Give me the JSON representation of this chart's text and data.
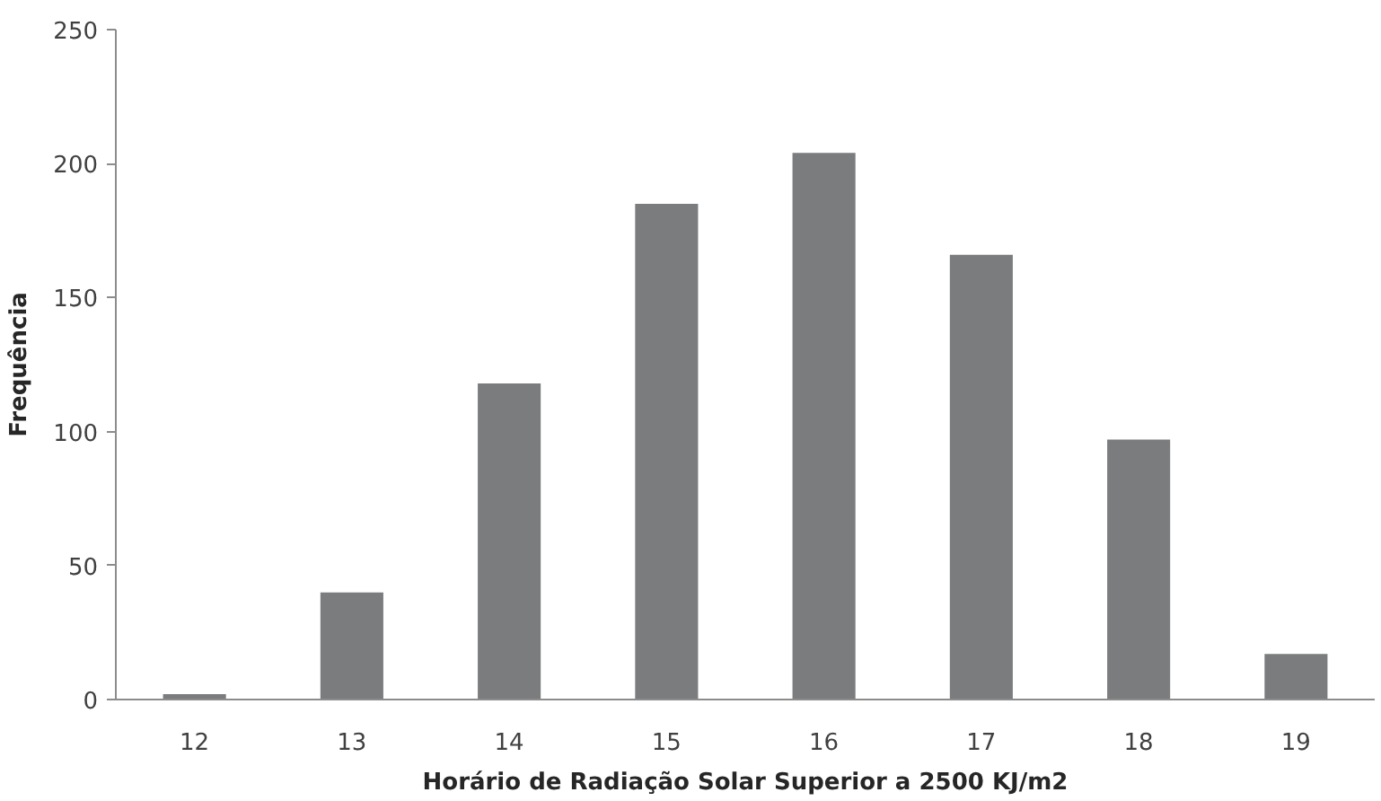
{
  "chart_data": {
    "type": "bar",
    "xlabel": "Horário de Radiação Solar Superior a 2500 KJ/m2",
    "ylabel": "Frequência",
    "categories": [
      "12",
      "13",
      "14",
      "15",
      "16",
      "17",
      "18",
      "19"
    ],
    "values": [
      2,
      40,
      118,
      185,
      204,
      166,
      97,
      17
    ],
    "color": "#7a7c7e",
    "ylim": [
      0,
      250
    ],
    "yticks": [
      0,
      50,
      100,
      150,
      200,
      250
    ]
  }
}
